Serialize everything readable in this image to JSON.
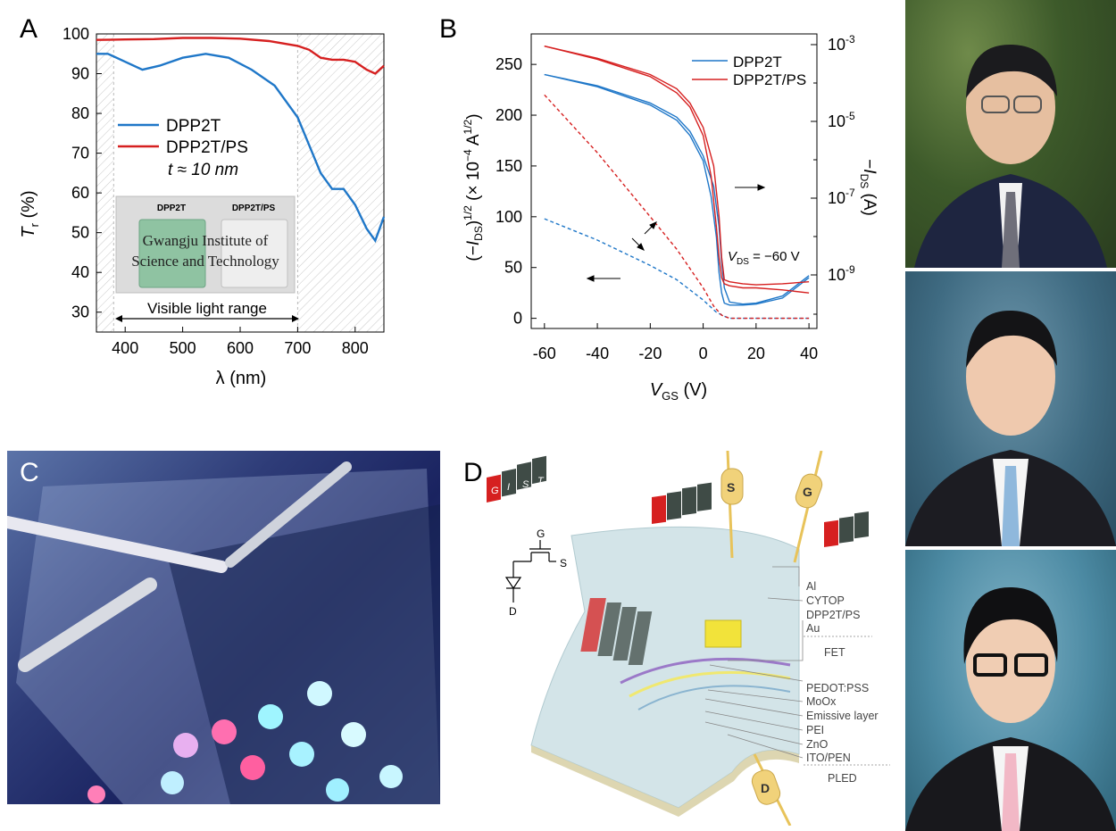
{
  "panelA": {
    "letter": "A",
    "yaxis_label_main": "T",
    "yaxis_label_sub": "r",
    "yaxis_label_unit": " (%)",
    "xaxis_label": "λ (nm)",
    "legend": [
      "DPP2T",
      "DPP2T/PS"
    ],
    "thickness_note": "t ≈ 10 nm",
    "inset_label_left": "DPP2T",
    "inset_label_right": "DPP2T/PS",
    "inset_text_line1": "Gwangju Institute of",
    "inset_text_line2": "Science and Technology",
    "range_label": "Visible light range",
    "colors": {
      "DPP2T": "#1f77c8",
      "DPP2T/PS": "#d62020"
    }
  },
  "panelB": {
    "letter": "B",
    "xaxis_label_main": "V",
    "xaxis_label_sub": "GS",
    "xaxis_label_unit": " (V)",
    "yleft_label": "(−I_DS)^1/2 (× 10^−4 A^1/2)",
    "yright_label": "−I_DS (A)",
    "legend": [
      "DPP2T",
      "DPP2T/PS"
    ],
    "vds_note": "V_DS = −60 V",
    "right_ticks": [
      "10^-3",
      "10^-5",
      "10^-7",
      "10^-9"
    ]
  },
  "panelC": {
    "letter": "C"
  },
  "panelD": {
    "letter": "D",
    "gist_letters": [
      "G",
      "I",
      "S",
      "T"
    ],
    "probe_labels": [
      "S",
      "G",
      "D"
    ],
    "circuit_labels": {
      "g": "G",
      "s": "S",
      "d": "D"
    },
    "layers": [
      "Al",
      "CYTOP",
      "DPP2T/PS",
      "Au",
      "PEDOT:PSS",
      "MoOx",
      "Emissive layer",
      "PEI",
      "ZnO",
      "ITO/PEN"
    ],
    "group_fet": "FET",
    "group_pled": "PLED"
  },
  "chart_data": [
    {
      "type": "line",
      "xlabel": "λ (nm)",
      "ylabel": "Tr (%)",
      "xlim": [
        350,
        850
      ],
      "ylim": [
        25,
        100
      ],
      "xticks": [
        400,
        500,
        600,
        700,
        800
      ],
      "yticks": [
        30,
        40,
        50,
        60,
        70,
        80,
        90,
        100
      ],
      "legend": "left-middle",
      "series": [
        {
          "name": "DPP2T",
          "x": [
            350,
            370,
            400,
            430,
            460,
            500,
            540,
            580,
            620,
            660,
            700,
            720,
            740,
            760,
            780,
            800,
            820,
            835,
            850
          ],
          "y": [
            95,
            95,
            93,
            91,
            92,
            94,
            95,
            94,
            91,
            87,
            79,
            72,
            65,
            61,
            61,
            57,
            51,
            48,
            54
          ]
        },
        {
          "name": "DPP2T/PS",
          "x": [
            350,
            400,
            450,
            500,
            550,
            600,
            650,
            700,
            720,
            740,
            760,
            780,
            800,
            820,
            835,
            850
          ],
          "y": [
            98.5,
            98.6,
            98.7,
            99,
            99,
            98.8,
            98.2,
            97,
            96,
            94,
            93.5,
            93.5,
            93,
            91,
            90,
            92
          ]
        }
      ]
    },
    {
      "type": "line",
      "xlabel": "VGS (V)",
      "ylabel": "(−IDS)^1/2 (× 10^−4 A^1/2)",
      "y2label": "−IDS (A)",
      "xlim": [
        -65,
        43
      ],
      "ylim": [
        -10,
        280
      ],
      "xticks": [
        -60,
        -40,
        -20,
        0,
        20,
        40
      ],
      "yticks": [
        0,
        50,
        100,
        150,
        200,
        250
      ],
      "legend": "top-right",
      "series": [
        {
          "name": "DPP2T (log, fwd)",
          "axis": "right",
          "x": [
            -60,
            -40,
            -20,
            -10,
            -5,
            0,
            3,
            5,
            6,
            7,
            8,
            10,
            15,
            20,
            30,
            40
          ],
          "y": [
            240,
            228,
            210,
            195,
            180,
            155,
            120,
            80,
            45,
            25,
            15,
            13,
            13,
            14,
            20,
            40
          ]
        },
        {
          "name": "DPP2T (log, rev)",
          "axis": "right",
          "x": [
            -60,
            -40,
            -20,
            -10,
            -5,
            0,
            4,
            6,
            7,
            8,
            10,
            15,
            20,
            30,
            40
          ],
          "y": [
            240,
            229,
            212,
            198,
            184,
            160,
            130,
            90,
            55,
            30,
            16,
            14,
            15,
            22,
            42
          ]
        },
        {
          "name": "DPP2T/PS (log, fwd)",
          "axis": "right",
          "x": [
            -60,
            -40,
            -20,
            -10,
            -5,
            0,
            3,
            5,
            6,
            7,
            8,
            10,
            15,
            20,
            30,
            40
          ],
          "y": [
            268,
            255,
            238,
            222,
            208,
            180,
            140,
            90,
            60,
            40,
            34,
            32,
            30,
            30,
            28,
            25
          ]
        },
        {
          "name": "DPP2T/PS (log, rev)",
          "axis": "right",
          "x": [
            -60,
            -40,
            -20,
            -10,
            -5,
            0,
            4,
            6,
            7,
            8,
            10,
            15,
            20,
            30,
            40
          ],
          "y": [
            268,
            256,
            240,
            226,
            212,
            188,
            150,
            100,
            60,
            38,
            36,
            34,
            33,
            34,
            36
          ]
        },
        {
          "name": "DPP2T (sqrt)",
          "axis": "left",
          "x": [
            -60,
            -40,
            -20,
            -10,
            0,
            5,
            8,
            10,
            20,
            40
          ],
          "y": [
            98,
            77,
            52,
            38,
            18,
            6,
            2,
            0,
            0,
            0
          ]
        },
        {
          "name": "DPP2T/PS (sqrt)",
          "axis": "left",
          "x": [
            -60,
            -40,
            -20,
            -10,
            0,
            4,
            7,
            10,
            20,
            40
          ],
          "y": [
            220,
            163,
            100,
            68,
            30,
            12,
            3,
            0,
            0,
            0
          ]
        }
      ]
    }
  ]
}
